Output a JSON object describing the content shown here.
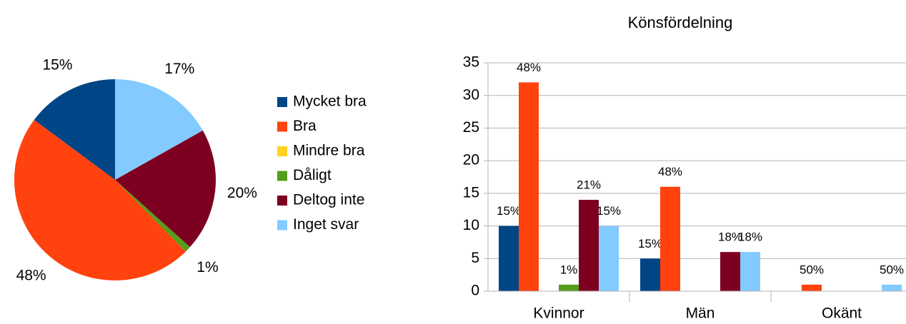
{
  "chart_data": [
    {
      "type": "pie",
      "categories": [
        "Mycket bra",
        "Bra",
        "Mindre bra",
        "Dåligt",
        "Deltog inte",
        "Inget svar"
      ],
      "values": [
        15,
        48,
        0,
        1,
        20,
        17
      ],
      "value_labels": [
        "15%",
        "48%",
        null,
        "1%",
        "20%",
        "17%"
      ],
      "colors": [
        "#004586",
        "#ff420e",
        "#ffd320",
        "#579d1c",
        "#7e0021",
        "#83caff"
      ],
      "legend": "right"
    },
    {
      "type": "bar",
      "title": "Könsfördelning",
      "categories": [
        "Kvinnor",
        "Män",
        "Okänt"
      ],
      "series": [
        {
          "color": "#004586",
          "values": [
            10,
            5,
            0
          ],
          "value_labels": [
            "15%",
            "15%",
            null
          ]
        },
        {
          "color": "#ff420e",
          "values": [
            32,
            16,
            1
          ],
          "value_labels": [
            "48%",
            "48%",
            "50%"
          ]
        },
        {
          "color": "#ffd320",
          "values": [
            0,
            0,
            0
          ],
          "value_labels": [
            null,
            null,
            null
          ]
        },
        {
          "color": "#579d1c",
          "values": [
            1,
            0,
            0
          ],
          "value_labels": [
            "1%",
            null,
            null
          ]
        },
        {
          "color": "#7e0021",
          "values": [
            14,
            6,
            0
          ],
          "value_labels": [
            "21%",
            "18%",
            null
          ]
        },
        {
          "color": "#83caff",
          "values": [
            10,
            6,
            1
          ],
          "value_labels": [
            "15%",
            "18%",
            "50%"
          ]
        }
      ],
      "ylim": [
        0,
        35
      ],
      "yticks": [
        0,
        5,
        10,
        15,
        20,
        25,
        30,
        35
      ],
      "grid": true
    }
  ]
}
